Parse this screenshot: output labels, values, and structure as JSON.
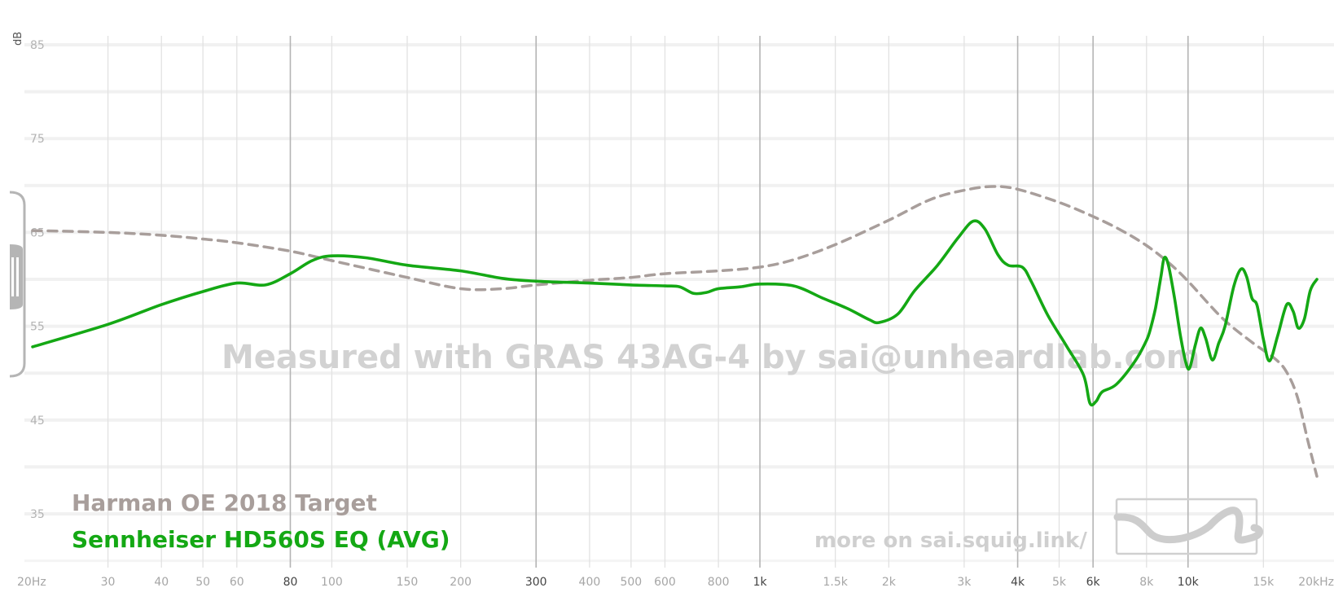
{
  "chart_data": {
    "type": "line",
    "xscale": "log",
    "xlim": [
      20,
      20000
    ],
    "ylim": [
      30,
      88
    ],
    "y_unit": "dB",
    "y_ticks": [
      35,
      45,
      55,
      65,
      75,
      85
    ],
    "x_ticks": [
      {
        "f": 20,
        "label": "20Hz",
        "major": false
      },
      {
        "f": 30,
        "label": "30",
        "major": false
      },
      {
        "f": 40,
        "label": "40",
        "major": false
      },
      {
        "f": 50,
        "label": "50",
        "major": false
      },
      {
        "f": 60,
        "label": "60",
        "major": false
      },
      {
        "f": 80,
        "label": "80",
        "major": true
      },
      {
        "f": 100,
        "label": "100",
        "major": false
      },
      {
        "f": 150,
        "label": "150",
        "major": false
      },
      {
        "f": 200,
        "label": "200",
        "major": false
      },
      {
        "f": 300,
        "label": "300",
        "major": true
      },
      {
        "f": 400,
        "label": "400",
        "major": false
      },
      {
        "f": 500,
        "label": "500",
        "major": false
      },
      {
        "f": 600,
        "label": "600",
        "major": false
      },
      {
        "f": 800,
        "label": "800",
        "major": false
      },
      {
        "f": 1000,
        "label": "1k",
        "major": true
      },
      {
        "f": 1500,
        "label": "1.5k",
        "major": false
      },
      {
        "f": 2000,
        "label": "2k",
        "major": false
      },
      {
        "f": 3000,
        "label": "3k",
        "major": false
      },
      {
        "f": 4000,
        "label": "4k",
        "major": true
      },
      {
        "f": 5000,
        "label": "5k",
        "major": false
      },
      {
        "f": 6000,
        "label": "6k",
        "major": true
      },
      {
        "f": 8000,
        "label": "8k",
        "major": false
      },
      {
        "f": 10000,
        "label": "10k",
        "major": true
      },
      {
        "f": 15000,
        "label": "15k",
        "major": false
      },
      {
        "f": 20000,
        "label": "20kHz",
        "major": false
      }
    ],
    "series": [
      {
        "name": "Harman OE 2018 Target",
        "color": "#a89e9b",
        "dashed": true,
        "points": [
          [
            20,
            65.2
          ],
          [
            30,
            65.0
          ],
          [
            40,
            64.7
          ],
          [
            50,
            64.3
          ],
          [
            60,
            63.9
          ],
          [
            80,
            63.0
          ],
          [
            100,
            62.0
          ],
          [
            150,
            60.2
          ],
          [
            200,
            59.0
          ],
          [
            250,
            59.0
          ],
          [
            300,
            59.4
          ],
          [
            400,
            59.9
          ],
          [
            500,
            60.2
          ],
          [
            600,
            60.6
          ],
          [
            800,
            60.9
          ],
          [
            1000,
            61.3
          ],
          [
            1200,
            62.1
          ],
          [
            1500,
            63.7
          ],
          [
            2000,
            66.3
          ],
          [
            2500,
            68.5
          ],
          [
            3000,
            69.5
          ],
          [
            3500,
            69.9
          ],
          [
            4000,
            69.6
          ],
          [
            5000,
            68.2
          ],
          [
            6000,
            66.7
          ],
          [
            7000,
            65.2
          ],
          [
            8000,
            63.6
          ],
          [
            9000,
            61.8
          ],
          [
            10000,
            59.8
          ],
          [
            12000,
            55.9
          ],
          [
            14000,
            53.4
          ],
          [
            16000,
            51.5
          ],
          [
            17000,
            50.1
          ],
          [
            18000,
            47.5
          ],
          [
            19000,
            43.0
          ],
          [
            20000,
            39.0
          ]
        ]
      },
      {
        "name": "Sennheiser HD560S EQ (AVG)",
        "color": "#14a814",
        "dashed": false,
        "points": [
          [
            20,
            52.8
          ],
          [
            30,
            55.2
          ],
          [
            40,
            57.3
          ],
          [
            50,
            58.7
          ],
          [
            60,
            59.6
          ],
          [
            70,
            59.4
          ],
          [
            80,
            60.6
          ],
          [
            90,
            62.0
          ],
          [
            100,
            62.5
          ],
          [
            120,
            62.3
          ],
          [
            150,
            61.5
          ],
          [
            200,
            60.9
          ],
          [
            250,
            60.1
          ],
          [
            300,
            59.8
          ],
          [
            400,
            59.6
          ],
          [
            500,
            59.4
          ],
          [
            600,
            59.3
          ],
          [
            650,
            59.2
          ],
          [
            700,
            58.5
          ],
          [
            750,
            58.6
          ],
          [
            800,
            59.0
          ],
          [
            900,
            59.2
          ],
          [
            1000,
            59.5
          ],
          [
            1200,
            59.3
          ],
          [
            1400,
            58.0
          ],
          [
            1600,
            56.9
          ],
          [
            1800,
            55.7
          ],
          [
            1900,
            55.4
          ],
          [
            2100,
            56.3
          ],
          [
            2300,
            58.8
          ],
          [
            2600,
            61.5
          ],
          [
            2900,
            64.4
          ],
          [
            3150,
            66.2
          ],
          [
            3350,
            65.4
          ],
          [
            3600,
            62.6
          ],
          [
            3800,
            61.5
          ],
          [
            4100,
            61.3
          ],
          [
            4300,
            59.8
          ],
          [
            4700,
            56.2
          ],
          [
            5200,
            52.9
          ],
          [
            5700,
            49.8
          ],
          [
            5900,
            46.8
          ],
          [
            6100,
            47.0
          ],
          [
            6300,
            48.0
          ],
          [
            6800,
            48.8
          ],
          [
            7500,
            51.2
          ],
          [
            8000,
            53.5
          ],
          [
            8200,
            55.0
          ],
          [
            8400,
            57.0
          ],
          [
            8650,
            60.4
          ],
          [
            8800,
            62.3
          ],
          [
            9000,
            61.5
          ],
          [
            9300,
            58.0
          ],
          [
            9600,
            54.0
          ],
          [
            9900,
            51.0
          ],
          [
            10100,
            50.6
          ],
          [
            10400,
            53.0
          ],
          [
            10700,
            54.8
          ],
          [
            11000,
            53.7
          ],
          [
            11400,
            51.4
          ],
          [
            11800,
            53.2
          ],
          [
            12200,
            55.0
          ],
          [
            12800,
            59.3
          ],
          [
            13300,
            61.1
          ],
          [
            13700,
            60.3
          ],
          [
            14100,
            58.0
          ],
          [
            14500,
            57.2
          ],
          [
            15000,
            53.6
          ],
          [
            15500,
            51.3
          ],
          [
            16200,
            54.0
          ],
          [
            17000,
            57.3
          ],
          [
            17600,
            56.6
          ],
          [
            18100,
            54.8
          ],
          [
            18700,
            55.8
          ],
          [
            19300,
            58.8
          ],
          [
            20000,
            60.0
          ]
        ]
      }
    ]
  },
  "watermark": "Measured with GRAS 43AG-4 by sai@unheardlab.com",
  "credit": "more on sai.squig.link/"
}
